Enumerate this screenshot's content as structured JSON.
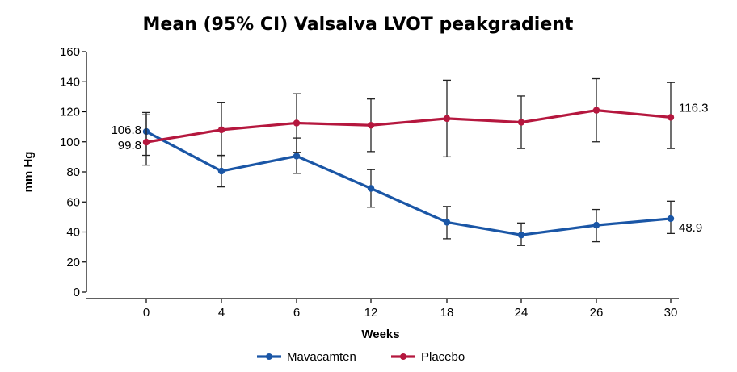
{
  "chart_data": {
    "type": "line",
    "title": "Mean (95% CI) Valsalva LVOT peakgradient",
    "xlabel": "Weeks",
    "ylabel": "mm Hg",
    "categories": [
      "0",
      "4",
      "6",
      "12",
      "18",
      "24",
      "26",
      "30"
    ],
    "ylim": [
      0,
      160
    ],
    "yticks": [
      0,
      20,
      40,
      60,
      80,
      100,
      120,
      140,
      160
    ],
    "grid": false,
    "legend_position": "bottom",
    "series": [
      {
        "name": "Mavacamten",
        "color": "#1a56a6",
        "values": [
          106.8,
          80.5,
          90.5,
          69.0,
          46.5,
          38.0,
          44.5,
          48.9
        ],
        "ci_low": [
          91,
          70,
          79,
          56.5,
          35.5,
          31,
          33.5,
          39
        ],
        "ci_high": [
          118,
          91,
          102.5,
          81.5,
          57,
          46,
          55,
          60.5
        ]
      },
      {
        "name": "Placebo",
        "color": "#b5173e",
        "values": [
          99.8,
          108.0,
          112.5,
          111.0,
          115.5,
          113.0,
          121.0,
          116.3
        ],
        "ci_low": [
          84.5,
          90,
          93,
          93.5,
          90,
          95.5,
          100,
          95.5
        ],
        "ci_high": [
          119.5,
          126,
          132,
          128.5,
          141,
          130.5,
          142,
          139.5
        ]
      }
    ],
    "annotations": [
      {
        "text": "106.8",
        "series": "Mavacamten",
        "index": 0
      },
      {
        "text": "99.8",
        "series": "Placebo",
        "index": 0
      },
      {
        "text": "116.3",
        "series": "Placebo",
        "index": 7
      },
      {
        "text": "48.9",
        "series": "Mavacamten",
        "index": 7
      }
    ]
  }
}
